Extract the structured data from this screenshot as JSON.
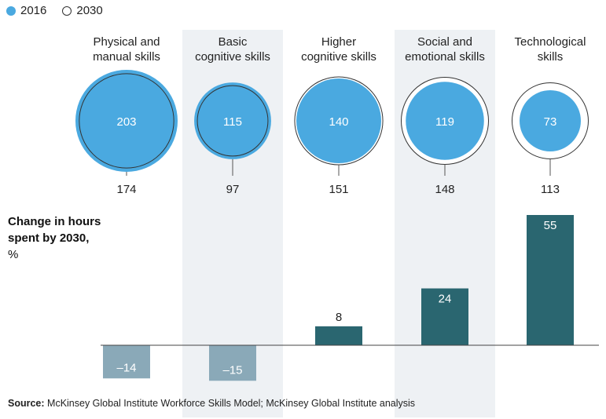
{
  "legend": {
    "items": [
      {
        "label": "2016",
        "style": "filled",
        "color": "#4aa9e0"
      },
      {
        "label": "2030",
        "style": "hollow",
        "color": "#333333"
      }
    ]
  },
  "ylabel": {
    "main": "Change in hours spent by 2030,",
    "unit": "%"
  },
  "source": {
    "label": "Source:",
    "text": "McKinsey Global Institute Workforce Skills Model; McKinsey Global Institute analysis"
  },
  "colors": {
    "bubble_2016": "#4aa9e0",
    "bar_positive": "#2a6670",
    "bar_negative": "#8aa9b8",
    "column_shade": "#eef1f4",
    "outline_2030": "#333333"
  },
  "chart_data": [
    {
      "type": "bubble",
      "categories": [
        "Physical and manual skills",
        "Basic cognitive skills",
        "Higher cognitive skills",
        "Social and emotional skills",
        "Technological skills"
      ],
      "series": [
        {
          "name": "2016",
          "values": [
            203,
            115,
            140,
            119,
            73
          ]
        },
        {
          "name": "2030",
          "values": [
            174,
            97,
            151,
            148,
            113
          ]
        }
      ]
    },
    {
      "type": "bar",
      "categories": [
        "Physical and manual skills",
        "Basic cognitive skills",
        "Higher cognitive skills",
        "Social and emotional skills",
        "Technological skills"
      ],
      "values": [
        -14,
        -15,
        8,
        24,
        55
      ],
      "value_labels": [
        "–14",
        "–15",
        "8",
        "24",
        "55"
      ],
      "ylabel": "Change in hours spent by 2030, %"
    }
  ]
}
